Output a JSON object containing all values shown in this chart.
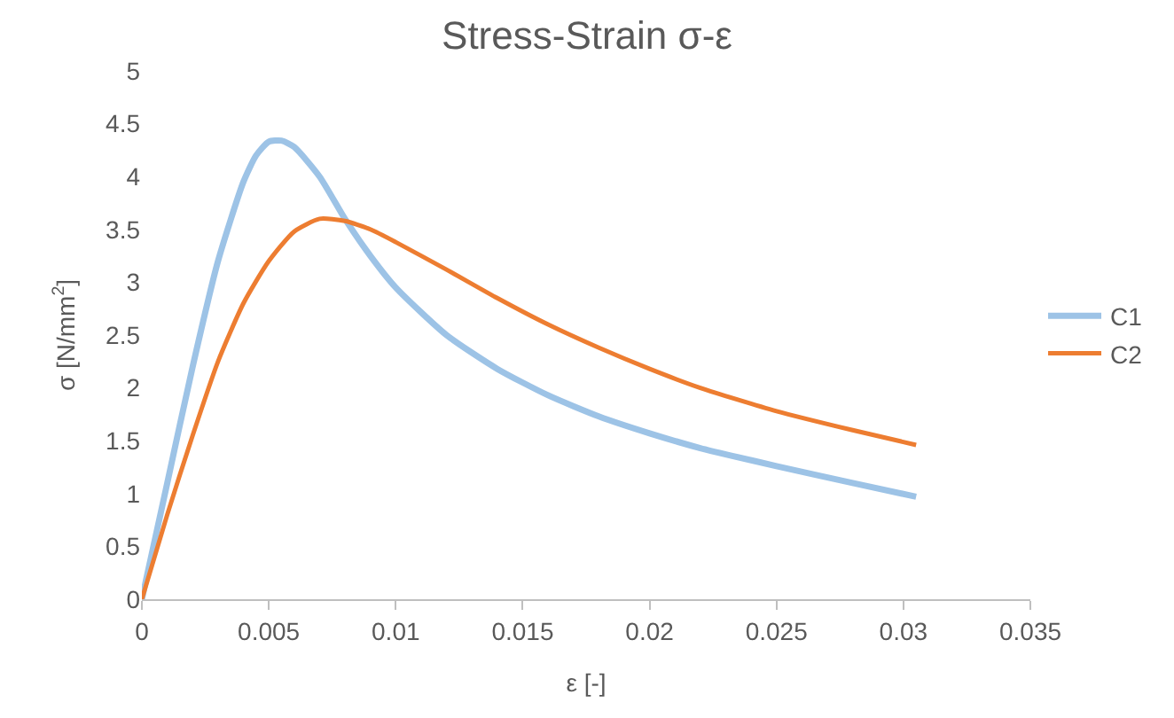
{
  "chart_data": {
    "type": "line",
    "title": "Stress-Strain σ-ε",
    "xlabel": "ε [-]",
    "ylabel": "σ [N/mm$^{2}$]",
    "xlim": [
      0,
      0.035
    ],
    "xticks": [
      0,
      0.005,
      0.01,
      0.015,
      0.02,
      0.025,
      0.03,
      0.035
    ],
    "ylim": [
      0,
      5
    ],
    "yticks": [
      0,
      0.5,
      1,
      1.5,
      2,
      2.5,
      3,
      3.5,
      4,
      4.5,
      5
    ],
    "grid": false,
    "legend": "right",
    "marker": "none",
    "line_style": "solid",
    "series": [
      {
        "name": "C1",
        "color": "#9dc3e6",
        "x": [
          0,
          0.001,
          0.002,
          0.003,
          0.004,
          0.0045,
          0.005,
          0.0055,
          0.006,
          0.007,
          0.008,
          0.009,
          0.01,
          0.012,
          0.014,
          0.016,
          0.018,
          0.02,
          0.022,
          0.025,
          0.028,
          0.0305
        ],
        "values": [
          0,
          1.1,
          2.2,
          3.2,
          3.95,
          4.2,
          4.33,
          4.34,
          4.28,
          4.0,
          3.6,
          3.25,
          2.95,
          2.5,
          2.18,
          1.93,
          1.73,
          1.57,
          1.43,
          1.26,
          1.1,
          0.97
        ]
      },
      {
        "name": "C2",
        "color": "#ed7d31",
        "x": [
          0,
          0.001,
          0.002,
          0.003,
          0.004,
          0.005,
          0.006,
          0.007,
          0.008,
          0.009,
          0.01,
          0.012,
          0.014,
          0.016,
          0.018,
          0.02,
          0.022,
          0.025,
          0.028,
          0.0305
        ],
        "values": [
          0,
          0.8,
          1.55,
          2.25,
          2.8,
          3.2,
          3.48,
          3.6,
          3.58,
          3.5,
          3.38,
          3.12,
          2.85,
          2.6,
          2.38,
          2.18,
          2.0,
          1.78,
          1.6,
          1.46
        ]
      }
    ]
  }
}
